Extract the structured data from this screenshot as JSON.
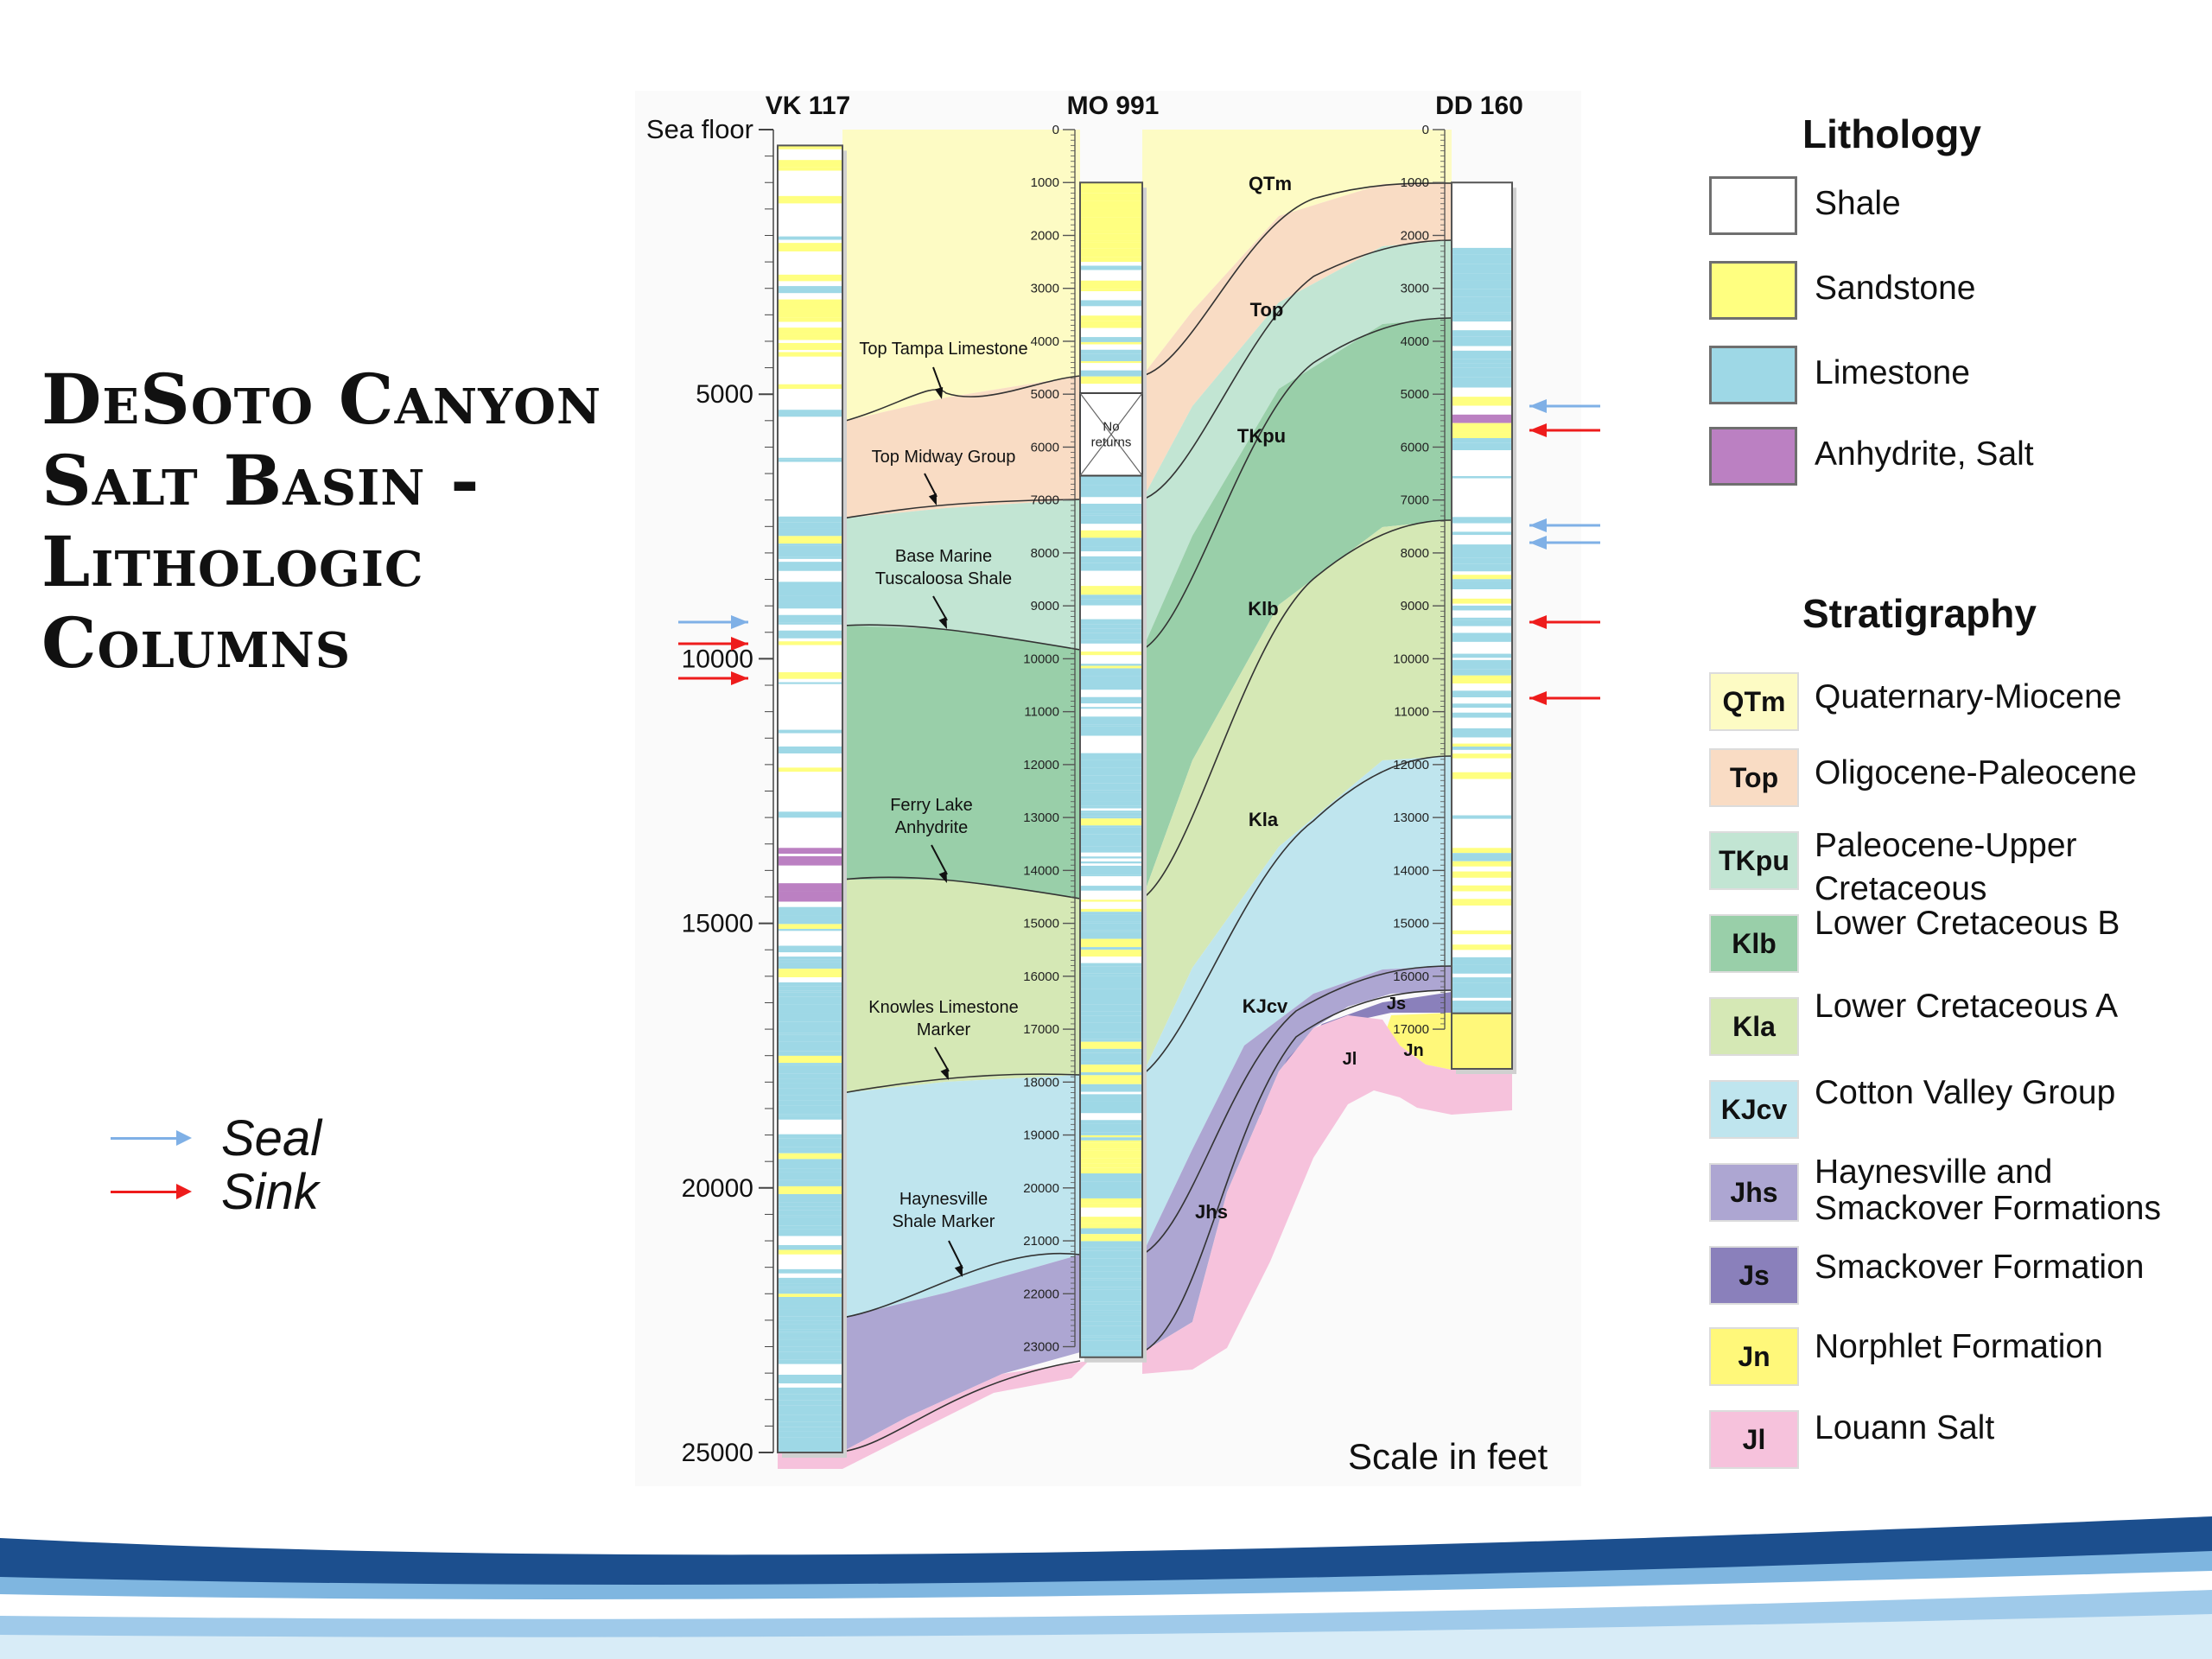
{
  "title_lines": [
    "DeSoto Canyon",
    "Salt Basin -",
    "Lithologic",
    "Columns"
  ],
  "key": {
    "seal_label": "Seal",
    "sink_label": "Sink",
    "seal_color": "#7fb0e6",
    "sink_color": "#ee1c1c"
  },
  "wells": [
    {
      "name": "VK 117"
    },
    {
      "name": "MO 991",
      "no_returns_label": "No returns",
      "no_returns_interval": [
        4980,
        6540
      ]
    },
    {
      "name": "DD 160"
    }
  ],
  "depth_axis": {
    "top_label": "Sea floor",
    "major_ticks": [
      5000,
      10000,
      15000,
      20000,
      25000
    ],
    "fine_ticks": [
      0,
      1000,
      2000,
      3000,
      4000,
      5000,
      6000,
      7000,
      8000,
      9000,
      10000,
      11000,
      12000,
      13000,
      14000,
      15000,
      16000,
      17000,
      18000,
      19000,
      20000,
      21000,
      22000,
      23000
    ],
    "dd_fine_ticks": [
      0,
      1000,
      2000,
      3000,
      4000,
      5000,
      6000,
      7000,
      8000,
      9000,
      10000,
      11000,
      12000,
      13000,
      14000,
      15000,
      16000,
      17000
    ],
    "range": [
      0,
      25000
    ]
  },
  "markers": [
    {
      "label": "Top Tampa Limestone",
      "depth": 5350
    },
    {
      "label": "Top Midway Group",
      "depth": 7350
    },
    {
      "label": "Base Marine Tuscaloosa Shale",
      "depth": 9850
    },
    {
      "label": "Ferry Lake Anhydrite",
      "depth": 14400
    },
    {
      "label": "Knowles Limestone Marker",
      "depth": 18200
    },
    {
      "label": "Haynesville Shale Marker",
      "depth": 21700
    }
  ],
  "correlation_labels": [
    "QTm",
    "Top",
    "TKpu",
    "Klb",
    "Kla",
    "KJcv",
    "Js",
    "Jn",
    "Jl",
    "Jhs"
  ],
  "lithology_heading": "Lithology",
  "lithology": [
    {
      "label": "Shale",
      "color": "#ffffff"
    },
    {
      "label": "Sandstone",
      "color": "#ffff80"
    },
    {
      "label": "Limestone",
      "color": "#9ed8e6"
    },
    {
      "label": "Anhydrite, Salt",
      "color": "#bb80c2"
    }
  ],
  "stratigraphy_heading": "Stratigraphy",
  "stratigraphy": [
    {
      "code": "QTm",
      "label": "Quaternary-Miocene",
      "color": "#fdfbc4"
    },
    {
      "code": "Top",
      "label": "Oligocene-Paleocene",
      "color": "#f9dcc4"
    },
    {
      "code": "TKpu",
      "label": "Paleocene-Upper Cretaceous",
      "color": "#c2e5d3"
    },
    {
      "code": "Klb",
      "label": "Lower Cretaceous B",
      "color": "#99cfa9"
    },
    {
      "code": "Kla",
      "label": "Lower Cretaceous A",
      "color": "#d5e8b5"
    },
    {
      "code": "KJcv",
      "label": "Cotton Valley Group",
      "color": "#bfe5ee"
    },
    {
      "code": "Jhs",
      "label": "Haynesville and Smackover Formations",
      "color": "#ada6d2"
    },
    {
      "code": "Js",
      "label": "Smackover Formation",
      "color": "#8a80bb"
    },
    {
      "code": "Jn",
      "label": "Norphlet Formation",
      "color": "#fff87a"
    },
    {
      "code": "Jl",
      "label": "Louann Salt",
      "color": "#f6c2dc"
    }
  ],
  "scale_note": "Scale in feet",
  "footer_color": "#1c4f8e"
}
